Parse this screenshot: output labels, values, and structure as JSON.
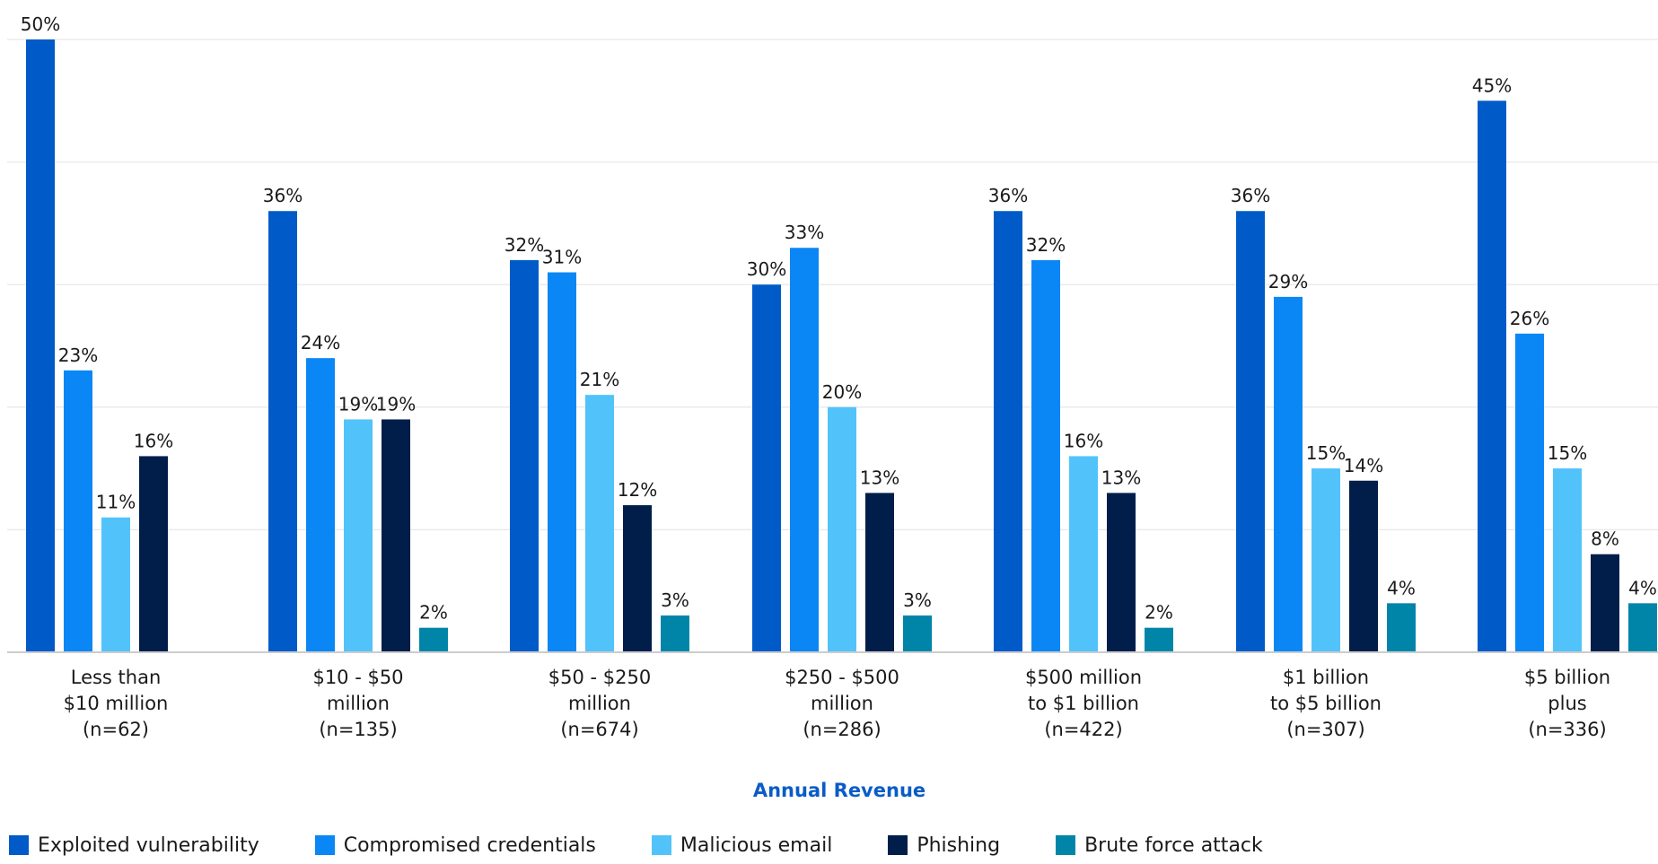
{
  "chart_data": {
    "type": "bar",
    "xlabel": "Annual Revenue",
    "ylim": [
      0,
      50
    ],
    "grid": true,
    "legend_position": "bottom",
    "categories": [
      [
        "Less than",
        "$10 million",
        "(n=62)"
      ],
      [
        "$10 - $50",
        "million",
        "(n=135)"
      ],
      [
        "$50 - $250",
        "million",
        "(n=674)"
      ],
      [
        "$250 - $500",
        "million",
        "(n=286)"
      ],
      [
        "$500 million",
        "to $1 billion",
        "(n=422)"
      ],
      [
        "$1 billion",
        "to $5 billion",
        "(n=307)"
      ],
      [
        "$5 billion",
        "plus",
        "(n=336)"
      ]
    ],
    "series": [
      {
        "name": "Exploited vulnerability",
        "color": "#005bc8",
        "values": [
          50,
          36,
          32,
          30,
          36,
          36,
          45
        ]
      },
      {
        "name": "Compromised credentials",
        "color": "#0b87f5",
        "values": [
          23,
          24,
          31,
          33,
          32,
          29,
          26
        ]
      },
      {
        "name": "Malicious email",
        "color": "#52c3fa",
        "values": [
          11,
          19,
          21,
          20,
          16,
          15,
          15
        ]
      },
      {
        "name": "Phishing",
        "color": "#011e4a",
        "values": [
          16,
          19,
          12,
          13,
          13,
          14,
          8
        ]
      },
      {
        "name": "Brute force attack",
        "color": "#0085a8",
        "values": [
          null,
          2,
          3,
          3,
          2,
          4,
          4
        ]
      }
    ],
    "value_suffix": "%"
  }
}
